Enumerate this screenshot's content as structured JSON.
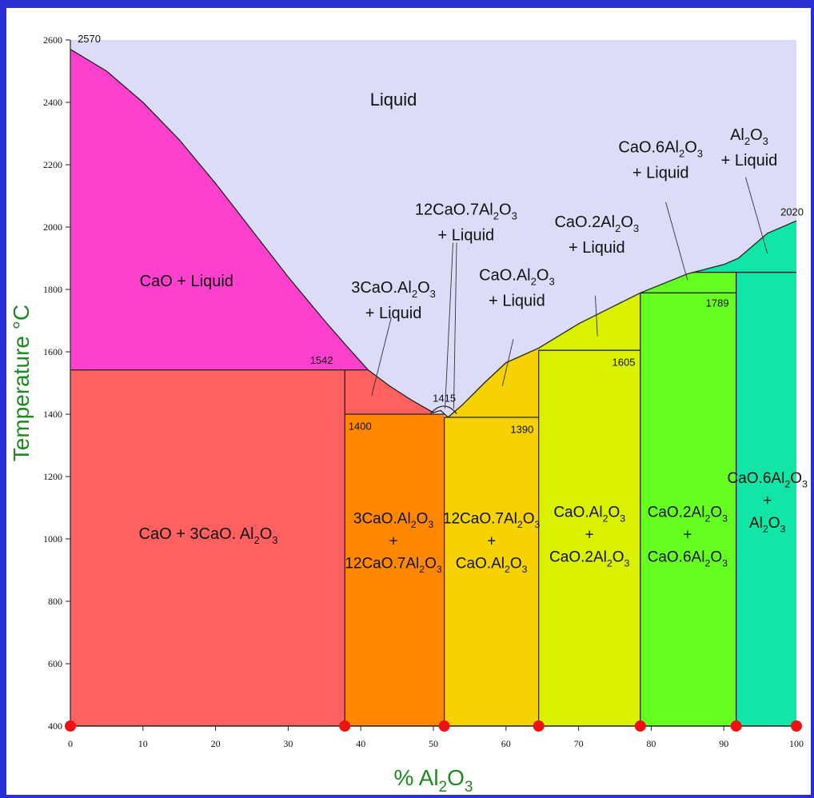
{
  "chart_data": {
    "type": "area",
    "title": "",
    "xlabel": "% Al2O3",
    "ylabel": "Temperature °C",
    "xlim": [
      0,
      100
    ],
    "ylim": [
      400,
      2600
    ],
    "x_ticks": [
      0,
      10,
      20,
      30,
      40,
      50,
      60,
      70,
      80,
      90,
      100
    ],
    "y_ticks": [
      400,
      600,
      800,
      1000,
      1200,
      1400,
      1600,
      1800,
      2000,
      2200,
      2400,
      2600
    ],
    "liquidus": [
      [
        0,
        2570
      ],
      [
        5,
        2500
      ],
      [
        10,
        2400
      ],
      [
        15,
        2280
      ],
      [
        20,
        2140
      ],
      [
        25,
        1990
      ],
      [
        30,
        1840
      ],
      [
        35,
        1700
      ],
      [
        38,
        1620
      ],
      [
        41,
        1542
      ],
      [
        44,
        1490
      ],
      [
        47,
        1445
      ],
      [
        50,
        1405
      ],
      [
        51,
        1412
      ],
      [
        52,
        1390
      ],
      [
        54,
        1430
      ],
      [
        57,
        1500
      ],
      [
        60,
        1565
      ],
      [
        64.5,
        1612
      ],
      [
        70,
        1690
      ],
      [
        78.5,
        1789
      ],
      [
        85,
        1850
      ],
      [
        90,
        1880
      ],
      [
        92,
        1900
      ],
      [
        96,
        1980
      ],
      [
        100,
        2020
      ]
    ],
    "compositions": [
      {
        "formula": "3CaO.Al2O3",
        "x": 37.8
      },
      {
        "formula": "12CaO.7Al2O3",
        "x": 51.5
      },
      {
        "formula": "CaO.Al2O3",
        "x": 64.5
      },
      {
        "formula": "CaO.2Al2O3",
        "x": 78.5
      },
      {
        "formula": "CaO.6Al2O3",
        "x": 91.7
      },
      {
        "formula": "Al2O3",
        "x": 100
      }
    ],
    "invariant_temperatures": [
      {
        "label": "2570",
        "x": 0,
        "y": 2570
      },
      {
        "label": "1542",
        "x": 37.8,
        "y": 1542
      },
      {
        "label": "1400",
        "x": 37.8,
        "y": 1400
      },
      {
        "label": "1415",
        "x": 51.5,
        "y": 1415
      },
      {
        "label": "1390",
        "x": 64.5,
        "y": 1390
      },
      {
        "label": "1605",
        "x": 78.5,
        "y": 1605
      },
      {
        "label": "1789",
        "x": 91.7,
        "y": 1789
      },
      {
        "label": "2020",
        "x": 100,
        "y": 2020
      }
    ],
    "regions": [
      {
        "name": "Liquid",
        "color": "#dcdcf9"
      },
      {
        "name": "CaO + Liquid",
        "color": "#ff3fcd"
      },
      {
        "name": "CaO + 3CaO. Al2O3",
        "color": "#ff6060"
      },
      {
        "name": "3CaO.Al2O3 + Liquid",
        "color": "#ff6060"
      },
      {
        "name": "3CaO.Al2O3 + 12CaO.7Al2O3",
        "color": "#ff8800"
      },
      {
        "name": "12CaO.7Al2O3 + Liquid",
        "color": "#dcdcf9"
      },
      {
        "name": "12CaO.7Al2O3 + CaO.Al2O3",
        "color": "#f5d200"
      },
      {
        "name": "CaO.Al2O3 + Liquid",
        "color": "#f5d200"
      },
      {
        "name": "CaO.Al2O3 + CaO.2Al2O3",
        "color": "#daf200"
      },
      {
        "name": "CaO.2Al2O3 + Liquid",
        "color": "#daf200"
      },
      {
        "name": "CaO.2Al2O3 + CaO.6Al2O3",
        "color": "#66ff22"
      },
      {
        "name": "CaO.6Al2O3 + Liquid",
        "color": "#66ff22"
      },
      {
        "name": "CaO.6Al2O3 + Al2O3",
        "color": "#11e6a6"
      },
      {
        "name": "Al2O3 + Liquid",
        "color": "#11e6a6"
      }
    ],
    "composition_marker_color": "#ee1111",
    "axis_label_color": "#1f8a1f",
    "grid": false,
    "legend": "none"
  }
}
